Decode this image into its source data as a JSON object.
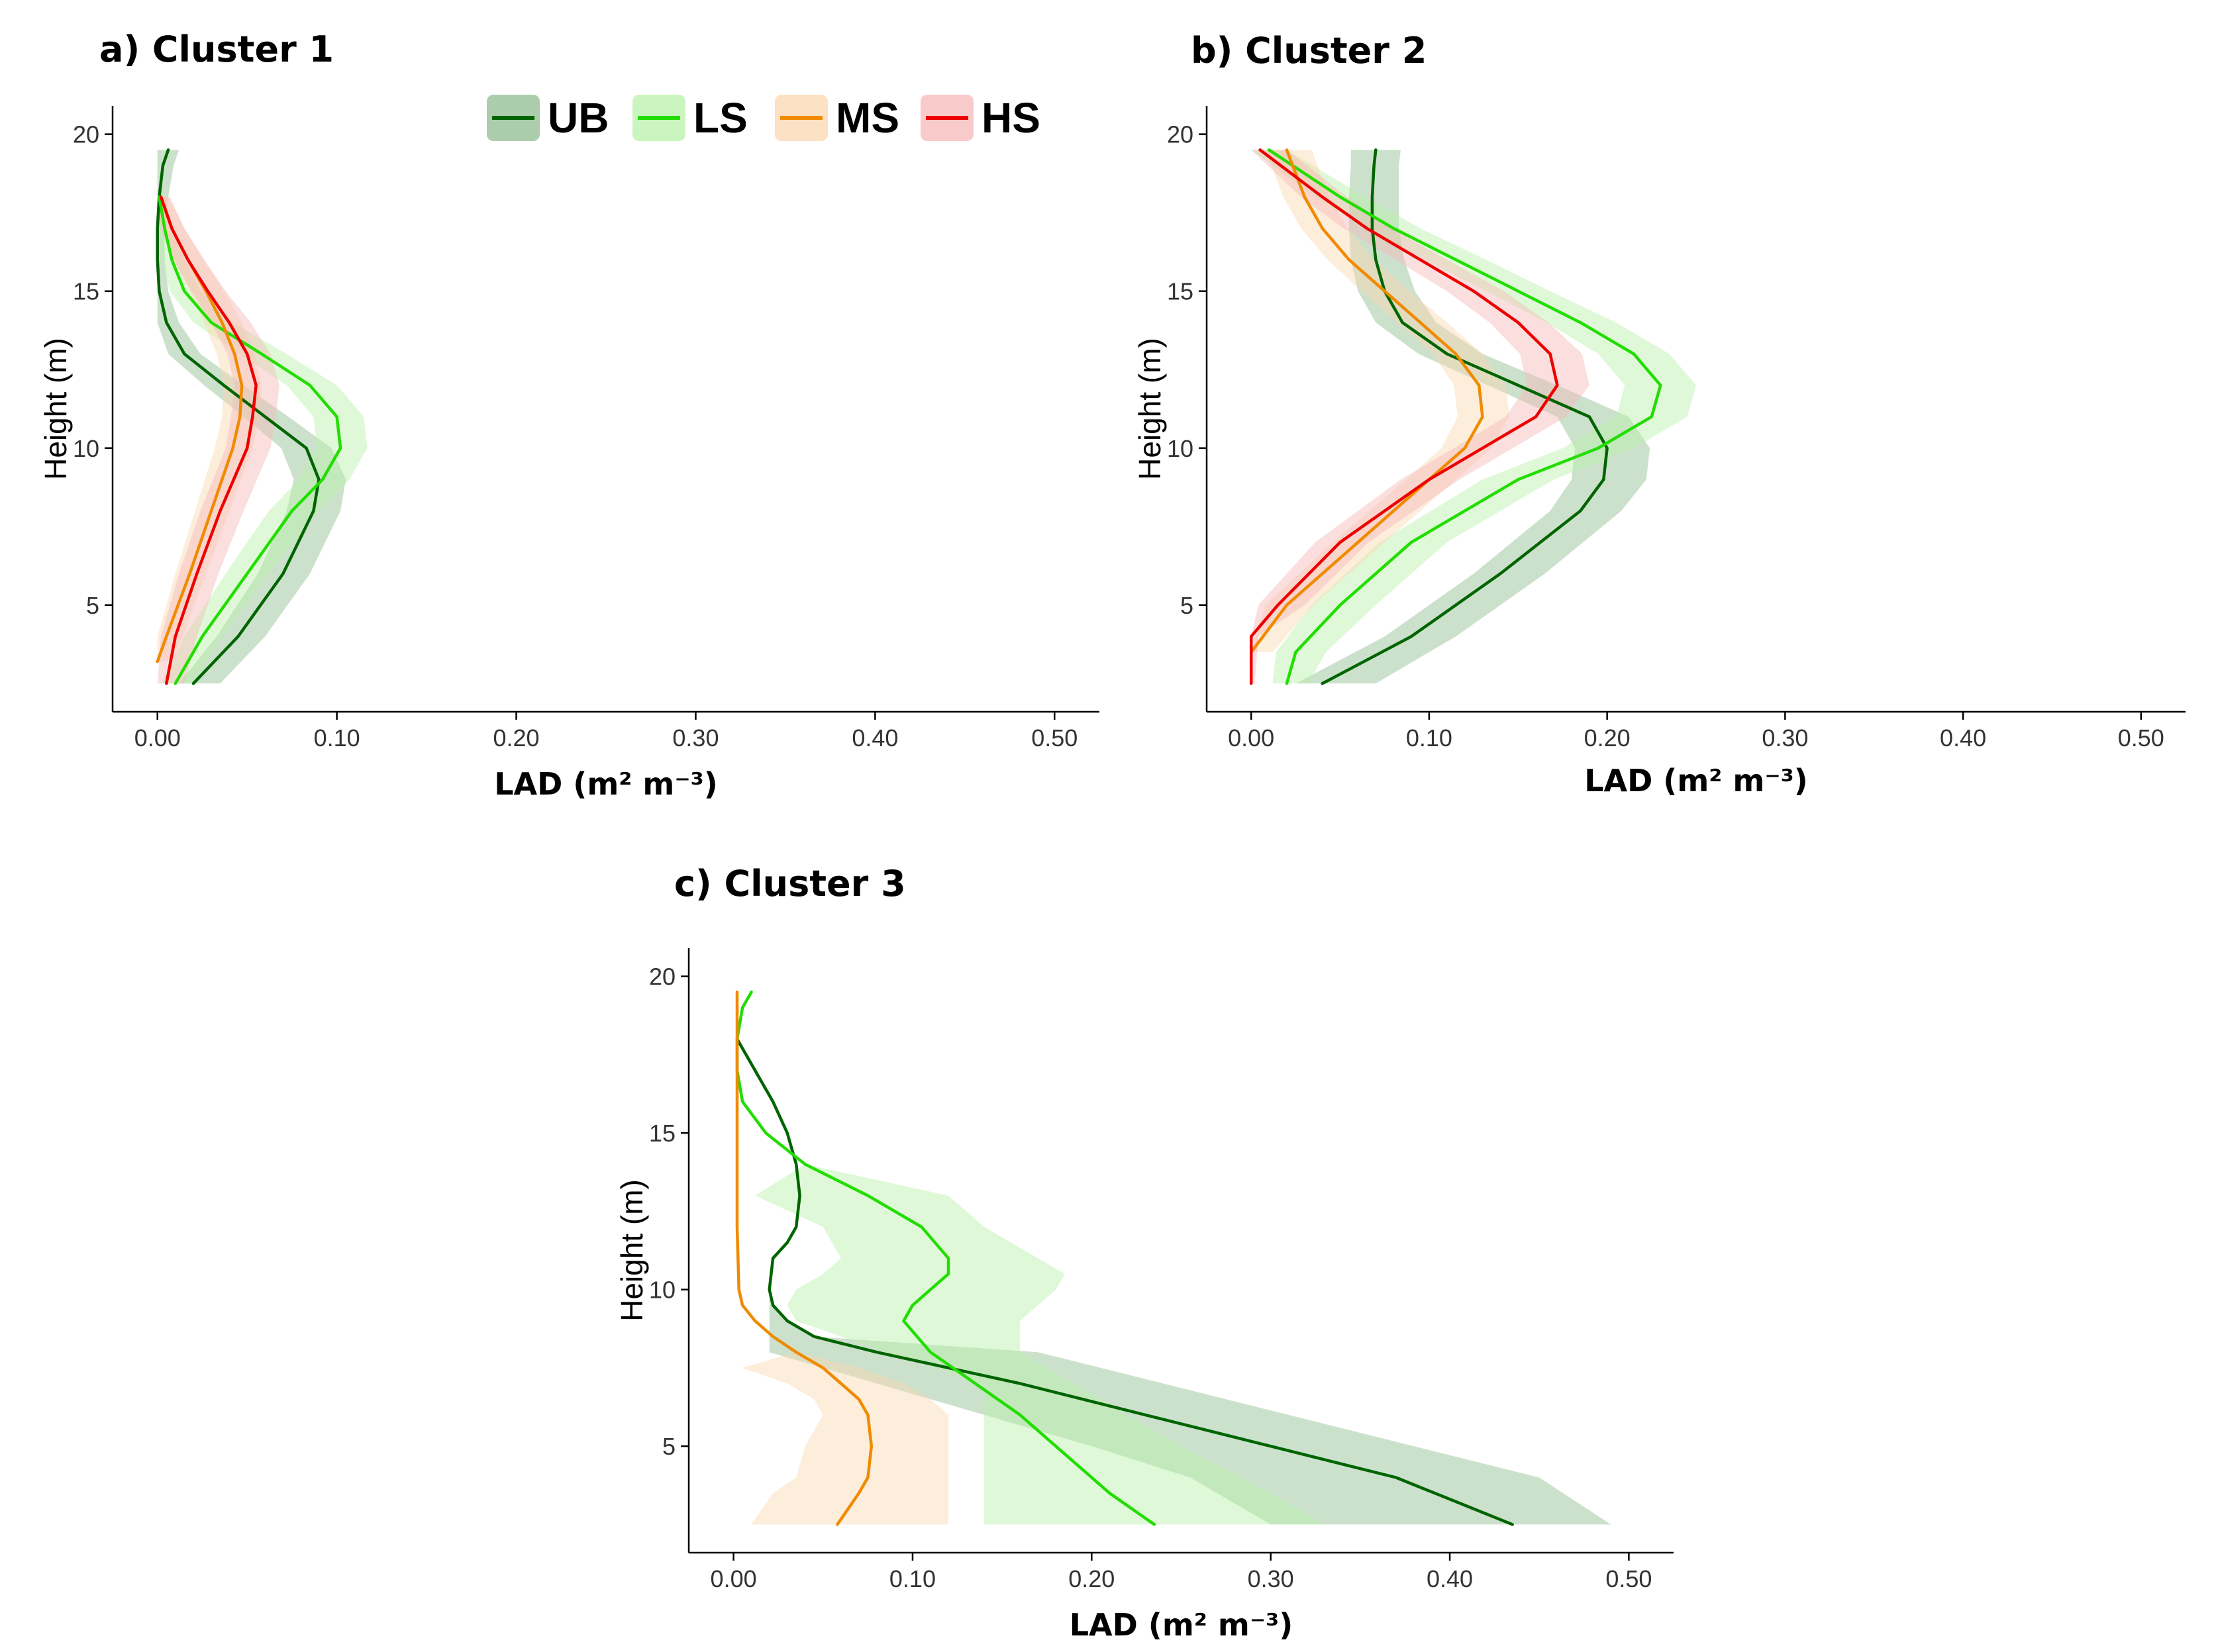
{
  "chart_data": [
    {
      "type": "line",
      "title": "a) Cluster 1",
      "xlabel": "LAD (m² m⁻³)",
      "ylabel": "Height (m)",
      "xlim": [
        -0.025,
        0.525
      ],
      "ylim": [
        1.6,
        20.9
      ],
      "xticks": [
        0.0,
        0.1,
        0.2,
        0.3,
        0.4,
        0.5
      ],
      "xtick_labels": [
        "0.00",
        "0.10",
        "0.20",
        "0.30",
        "0.40",
        "0.50"
      ],
      "yticks": [
        5,
        10,
        15,
        20
      ],
      "ytick_labels": [
        "5",
        "10",
        "15",
        "20"
      ],
      "legend": "top",
      "series": [
        {
          "name": "UB",
          "color": "#006400",
          "band_color": "#8FBC8F",
          "height": [
            2.5,
            4,
            6,
            8,
            9,
            10,
            11,
            12,
            13,
            14,
            15,
            16,
            17,
            18,
            19,
            19.5
          ],
          "lad": [
            0.02,
            0.045,
            0.07,
            0.087,
            0.09,
            0.083,
            0.06,
            0.037,
            0.015,
            0.005,
            0.001,
            0.0,
            0.0,
            0.001,
            0.003,
            0.006
          ],
          "band_lower": [
            0.012,
            0.033,
            0.056,
            0.072,
            0.076,
            0.069,
            0.048,
            0.026,
            0.006,
            0.0,
            0.0,
            0.0,
            0.0,
            0.0,
            0.0,
            0.0
          ],
          "band_upper": [
            0.035,
            0.06,
            0.085,
            0.102,
            0.105,
            0.097,
            0.073,
            0.048,
            0.024,
            0.012,
            0.006,
            0.004,
            0.004,
            0.006,
            0.009,
            0.012
          ]
        },
        {
          "name": "LS",
          "color": "#22DD00",
          "band_color": "#B8F2A8",
          "height": [
            2.5,
            4,
            6,
            8,
            9,
            10,
            11,
            12,
            13,
            14,
            15,
            16,
            17,
            18
          ],
          "lad": [
            0.01,
            0.025,
            0.05,
            0.075,
            0.092,
            0.102,
            0.1,
            0.085,
            0.058,
            0.03,
            0.015,
            0.008,
            0.004,
            0.001
          ],
          "band_lower": [
            0.002,
            0.015,
            0.038,
            0.062,
            0.079,
            0.089,
            0.087,
            0.072,
            0.046,
            0.02,
            0.007,
            0.002,
            0.0,
            0.0
          ],
          "band_upper": [
            0.02,
            0.036,
            0.062,
            0.09,
            0.107,
            0.117,
            0.115,
            0.1,
            0.072,
            0.042,
            0.024,
            0.015,
            0.009,
            0.004
          ]
        },
        {
          "name": "MS",
          "color": "#F08A00",
          "band_color": "#FBD7B0",
          "height": [
            3.2,
            4,
            6,
            8,
            10,
            11,
            12,
            13,
            14,
            15,
            16,
            17,
            18
          ],
          "lad": [
            0.0,
            0.005,
            0.018,
            0.03,
            0.042,
            0.046,
            0.047,
            0.043,
            0.036,
            0.027,
            0.017,
            0.008,
            0.002
          ],
          "band_lower": [
            0.0,
            0.0,
            0.01,
            0.021,
            0.032,
            0.036,
            0.037,
            0.033,
            0.026,
            0.018,
            0.009,
            0.002,
            0.0
          ],
          "band_upper": [
            0.008,
            0.014,
            0.027,
            0.04,
            0.053,
            0.057,
            0.058,
            0.054,
            0.047,
            0.037,
            0.026,
            0.015,
            0.006
          ]
        },
        {
          "name": "HS",
          "color": "#EE0000",
          "band_color": "#F7B8B8",
          "height": [
            2.5,
            4,
            6,
            8,
            10,
            11,
            12,
            13,
            14,
            15,
            16,
            17,
            18
          ],
          "lad": [
            0.005,
            0.01,
            0.022,
            0.035,
            0.05,
            0.053,
            0.055,
            0.05,
            0.04,
            0.028,
            0.017,
            0.008,
            0.002
          ],
          "band_lower": [
            0.0,
            0.002,
            0.012,
            0.024,
            0.038,
            0.041,
            0.043,
            0.039,
            0.03,
            0.019,
            0.009,
            0.002,
            0.0
          ],
          "band_upper": [
            0.015,
            0.022,
            0.034,
            0.048,
            0.063,
            0.066,
            0.068,
            0.063,
            0.052,
            0.038,
            0.026,
            0.015,
            0.007
          ]
        }
      ]
    },
    {
      "type": "line",
      "title": "b) Cluster 2",
      "xlabel": "LAD (m² m⁻³)",
      "ylabel": "Height (m)",
      "xlim": [
        -0.025,
        0.525
      ],
      "ylim": [
        1.6,
        20.9
      ],
      "xticks": [
        0.0,
        0.1,
        0.2,
        0.3,
        0.4,
        0.5
      ],
      "xtick_labels": [
        "0.00",
        "0.10",
        "0.20",
        "0.30",
        "0.40",
        "0.50"
      ],
      "yticks": [
        5,
        10,
        15,
        20
      ],
      "ytick_labels": [
        "5",
        "10",
        "15",
        "20"
      ],
      "series": [
        {
          "name": "UB",
          "color": "#006400",
          "band_color": "#8FBC8F",
          "height": [
            2.5,
            4,
            6,
            8,
            9,
            10,
            11,
            12,
            13,
            14,
            15,
            16,
            17,
            18,
            19,
            19.5
          ],
          "lad": [
            0.04,
            0.09,
            0.14,
            0.185,
            0.198,
            0.2,
            0.19,
            0.15,
            0.11,
            0.085,
            0.075,
            0.07,
            0.068,
            0.068,
            0.069,
            0.07
          ],
          "band_lower": [
            0.025,
            0.075,
            0.125,
            0.168,
            0.18,
            0.182,
            0.172,
            0.133,
            0.094,
            0.07,
            0.06,
            0.056,
            0.055,
            0.055,
            0.056,
            0.056
          ],
          "band_upper": [
            0.07,
            0.115,
            0.165,
            0.208,
            0.222,
            0.224,
            0.212,
            0.172,
            0.13,
            0.104,
            0.092,
            0.086,
            0.083,
            0.083,
            0.083,
            0.084
          ]
        },
        {
          "name": "LS",
          "color": "#22DD00",
          "band_color": "#B8F2A8",
          "height": [
            2.5,
            3.5,
            5,
            7,
            9,
            10,
            11,
            12,
            13,
            14,
            15,
            16,
            17,
            18,
            19.5
          ],
          "lad": [
            0.02,
            0.025,
            0.05,
            0.09,
            0.15,
            0.195,
            0.225,
            0.23,
            0.215,
            0.185,
            0.15,
            0.115,
            0.08,
            0.05,
            0.01
          ],
          "band_lower": [
            0.012,
            0.014,
            0.034,
            0.072,
            0.13,
            0.175,
            0.205,
            0.21,
            0.195,
            0.166,
            0.132,
            0.098,
            0.065,
            0.036,
            0.0
          ],
          "band_upper": [
            0.032,
            0.042,
            0.07,
            0.11,
            0.17,
            0.215,
            0.245,
            0.25,
            0.235,
            0.205,
            0.168,
            0.132,
            0.095,
            0.064,
            0.02
          ]
        },
        {
          "name": "MS",
          "color": "#F08A00",
          "band_color": "#FBD7B0",
          "height": [
            3.5,
            5,
            7,
            9,
            10,
            11,
            12,
            13,
            14,
            15,
            16,
            17,
            18,
            19.5
          ],
          "lad": [
            0.0,
            0.02,
            0.06,
            0.1,
            0.12,
            0.13,
            0.128,
            0.115,
            0.095,
            0.075,
            0.055,
            0.04,
            0.03,
            0.02
          ],
          "band_lower": [
            0.0,
            0.008,
            0.046,
            0.087,
            0.107,
            0.116,
            0.114,
            0.102,
            0.082,
            0.062,
            0.043,
            0.028,
            0.018,
            0.008
          ],
          "band_upper": [
            0.012,
            0.035,
            0.075,
            0.115,
            0.135,
            0.145,
            0.143,
            0.13,
            0.11,
            0.089,
            0.069,
            0.054,
            0.044,
            0.034
          ]
        },
        {
          "name": "HS",
          "color": "#EE0000",
          "band_color": "#F7B8B8",
          "height": [
            2.5,
            4,
            5,
            7,
            9,
            10,
            11,
            12,
            13,
            14,
            15,
            16,
            17,
            18,
            19.5
          ],
          "lad": [
            0.0,
            0.0,
            0.015,
            0.05,
            0.1,
            0.13,
            0.16,
            0.172,
            0.168,
            0.15,
            0.125,
            0.095,
            0.065,
            0.04,
            0.005
          ],
          "band_lower": [
            0.0,
            0.0,
            0.004,
            0.036,
            0.084,
            0.114,
            0.143,
            0.155,
            0.151,
            0.134,
            0.11,
            0.081,
            0.052,
            0.028,
            0.0
          ],
          "band_upper": [
            0.002,
            0.004,
            0.03,
            0.066,
            0.117,
            0.147,
            0.177,
            0.19,
            0.186,
            0.167,
            0.142,
            0.11,
            0.079,
            0.054,
            0.02
          ]
        }
      ]
    },
    {
      "type": "line",
      "title": "c) Cluster 3",
      "xlabel": "LAD (m² m⁻³)",
      "ylabel": "Height (m)",
      "xlim": [
        -0.025,
        0.525
      ],
      "ylim": [
        1.6,
        20.9
      ],
      "xticks": [
        0.0,
        0.1,
        0.2,
        0.3,
        0.4,
        0.5
      ],
      "xtick_labels": [
        "0.00",
        "0.10",
        "0.20",
        "0.30",
        "0.40",
        "0.50"
      ],
      "yticks": [
        5,
        10,
        15,
        20
      ],
      "ytick_labels": [
        "5",
        "10",
        "15",
        "20"
      ],
      "series": [
        {
          "name": "UB",
          "color": "#006400",
          "band_color": "#8FBC8F",
          "height": [
            2.5,
            4,
            5,
            6,
            7,
            8,
            8.5,
            9,
            9.5,
            10,
            11,
            11.5,
            12,
            13,
            14,
            15,
            16,
            17,
            18
          ],
          "lad": [
            0.435,
            0.37,
            0.3,
            0.23,
            0.16,
            0.08,
            0.045,
            0.03,
            0.022,
            0.02,
            0.022,
            0.03,
            0.035,
            0.037,
            0.035,
            0.03,
            0.022,
            0.012,
            0.002
          ],
          "band_lower": [
            0.3,
            0.255,
            0.2,
            0.14,
            0.08,
            0.02,
            0.02,
            0.02,
            0.02,
            0.02,
            0.022,
            0.03,
            0.035,
            0.037,
            0.035,
            0.03,
            0.022,
            0.012,
            0.002
          ],
          "band_upper": [
            0.49,
            0.45,
            0.38,
            0.31,
            0.24,
            0.17,
            0.045,
            0.03,
            0.022,
            0.02,
            0.022,
            0.03,
            0.035,
            0.037,
            0.035,
            0.03,
            0.022,
            0.012,
            0.002
          ]
        },
        {
          "name": "LS",
          "color": "#22DD00",
          "band_color": "#B8F2A8",
          "height": [
            2.5,
            3.5,
            5,
            6,
            7,
            8,
            9,
            9.5,
            10,
            10.5,
            11,
            12,
            13,
            14,
            15,
            16,
            17,
            18,
            19,
            19.5
          ],
          "lad": [
            0.235,
            0.21,
            0.18,
            0.16,
            0.135,
            0.11,
            0.095,
            0.1,
            0.11,
            0.12,
            0.12,
            0.105,
            0.075,
            0.04,
            0.018,
            0.005,
            0.002,
            0.002,
            0.005,
            0.01
          ],
          "band_lower": [
            0.14,
            0.14,
            0.14,
            0.14,
            0.14,
            0.085,
            0.035,
            0.03,
            0.035,
            0.05,
            0.06,
            0.05,
            0.012,
            0.04,
            0.018,
            0.005,
            0.002,
            0.002,
            0.005,
            0.01
          ],
          "band_upper": [
            0.33,
            0.3,
            0.25,
            0.22,
            0.19,
            0.16,
            0.16,
            0.17,
            0.18,
            0.185,
            0.17,
            0.14,
            0.12,
            0.04,
            0.018,
            0.005,
            0.002,
            0.002,
            0.005,
            0.01
          ]
        },
        {
          "name": "MS",
          "color": "#F08A00",
          "band_color": "#FBD7B0",
          "height": [
            2.5,
            3.5,
            4,
            5,
            6,
            6.5,
            7,
            7.5,
            8,
            8.5,
            9,
            9.5,
            10,
            12,
            14,
            16,
            18,
            19.5
          ],
          "lad": [
            0.058,
            0.07,
            0.075,
            0.077,
            0.075,
            0.07,
            0.06,
            0.05,
            0.035,
            0.022,
            0.012,
            0.005,
            0.003,
            0.002,
            0.002,
            0.002,
            0.002,
            0.002
          ],
          "band_lower": [
            0.01,
            0.022,
            0.035,
            0.04,
            0.05,
            0.045,
            0.03,
            0.005,
            0.035,
            0.022,
            0.012,
            0.005,
            0.003,
            0.002,
            0.002,
            0.002,
            0.002,
            0.002
          ],
          "band_upper": [
            0.12,
            0.12,
            0.12,
            0.12,
            0.12,
            0.11,
            0.095,
            0.07,
            0.035,
            0.022,
            0.012,
            0.005,
            0.003,
            0.002,
            0.002,
            0.002,
            0.002,
            0.002
          ]
        }
      ]
    }
  ],
  "legend": {
    "items": [
      {
        "label": "UB",
        "color": "#006400",
        "band_color": "#8FBC8F"
      },
      {
        "label": "LS",
        "color": "#22DD00",
        "band_color": "#B8F2A8"
      },
      {
        "label": "MS",
        "color": "#F08A00",
        "band_color": "#FBD7B0"
      },
      {
        "label": "HS",
        "color": "#EE0000",
        "band_color": "#F7B8B8"
      }
    ]
  }
}
